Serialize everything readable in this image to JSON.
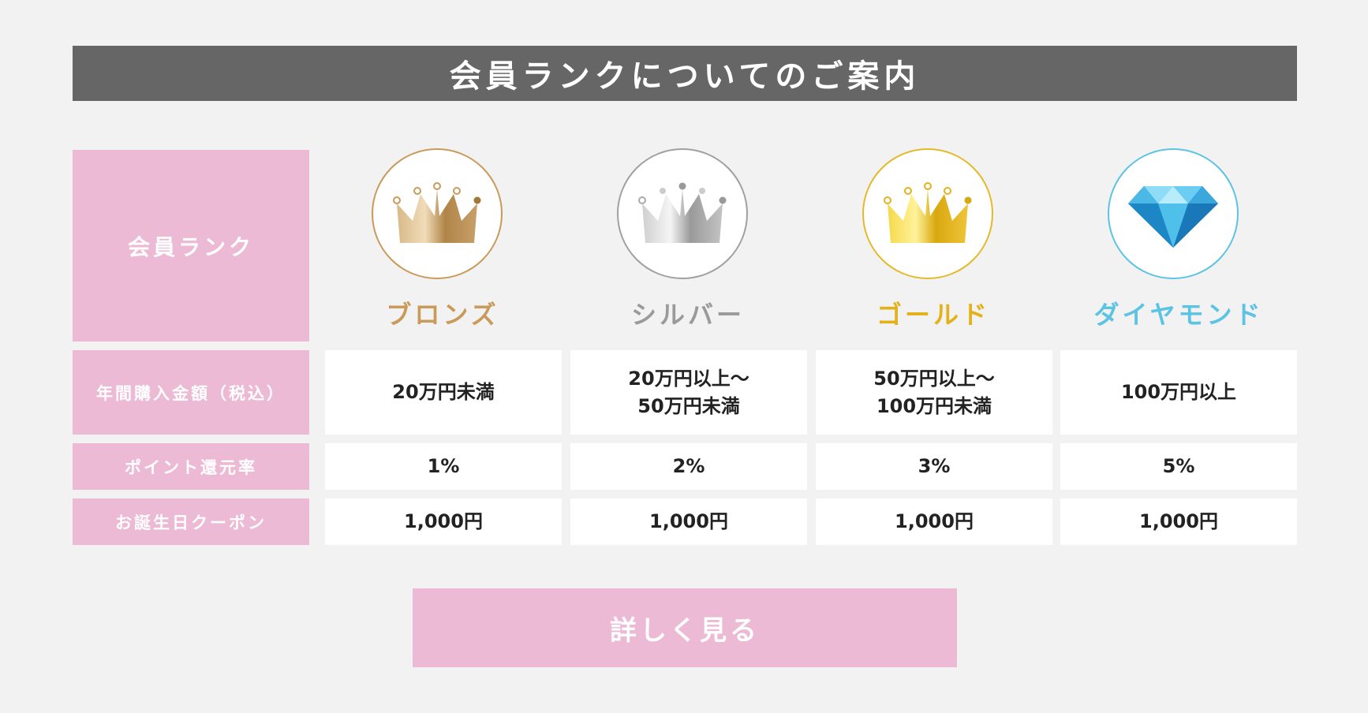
{
  "title": "会員ランクについてのご案内",
  "rank_header": "会員ランク",
  "ranks": [
    {
      "name": "ブロンズ",
      "color": "#c99a5a",
      "badge_border": "#c99a5a",
      "icon": "bronze-crown-icon"
    },
    {
      "name": "シルバー",
      "color": "#9a9a9a",
      "badge_border": "#a0a0a0",
      "icon": "silver-crown-icon"
    },
    {
      "name": "ゴールド",
      "color": "#e3b21b",
      "badge_border": "#e5b92a",
      "icon": "gold-crown-icon"
    },
    {
      "name": "ダイヤモンド",
      "color": "#5cc3e2",
      "badge_border": "#5cc3e2",
      "icon": "diamond-icon"
    }
  ],
  "rows": [
    {
      "label": "年間購入金額（税込）",
      "values": [
        "20万円未満",
        "20万円以上～\n50万円未満",
        "50万円以上～\n100万円未満",
        "100万円以上"
      ]
    },
    {
      "label": "ポイント還元率",
      "values": [
        "1%",
        "2%",
        "3%",
        "5%"
      ]
    },
    {
      "label": "お誕生日クーポン",
      "values": [
        "1,000円",
        "1,000円",
        "1,000円",
        "1,000円"
      ]
    }
  ],
  "button_label": "詳しく見る"
}
